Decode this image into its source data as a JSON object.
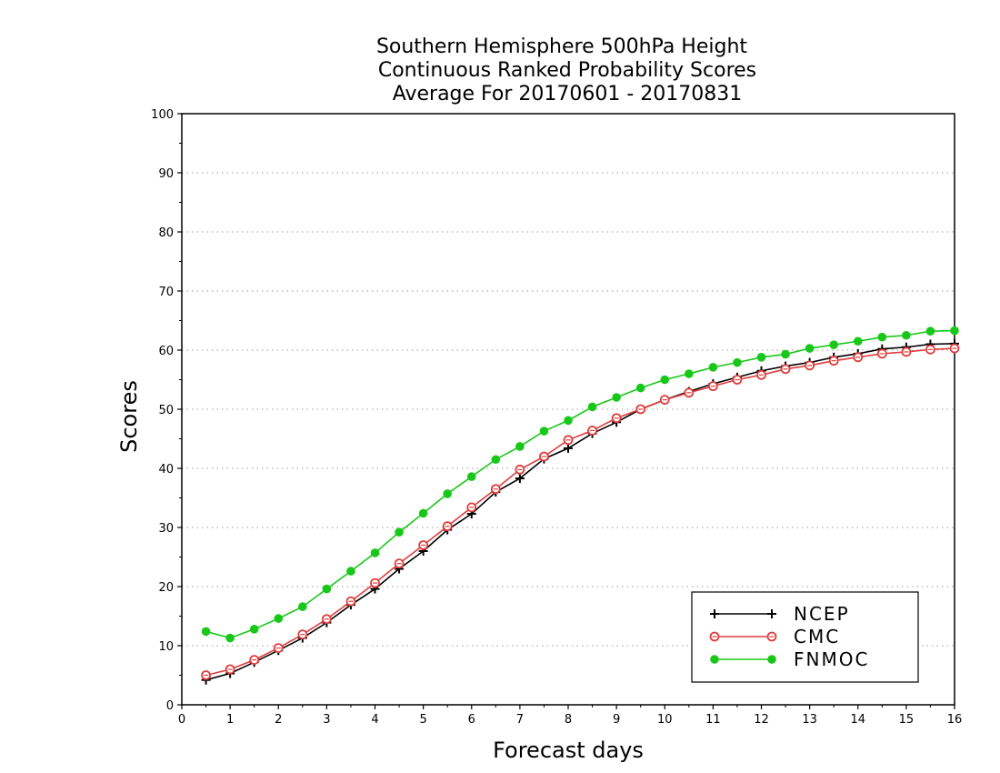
{
  "chart_data": {
    "type": "line",
    "title": [
      "Southern Hemisphere 500hPa Height",
      "Continuous Ranked Probability Scores",
      "Average For 20170601 - 20170831"
    ],
    "xlabel": "Forecast days",
    "ylabel": "Scores",
    "xlim": [
      0,
      16
    ],
    "ylim": [
      0,
      100
    ],
    "xticks": [
      0,
      1,
      2,
      3,
      4,
      5,
      6,
      7,
      8,
      9,
      10,
      11,
      12,
      13,
      14,
      15,
      16
    ],
    "yticks": [
      0,
      10,
      20,
      30,
      40,
      50,
      60,
      70,
      80,
      90,
      100
    ],
    "grid": "dotted horizontal",
    "legend_position": "bottom-right",
    "x": [
      0.5,
      1.0,
      1.5,
      2.0,
      2.5,
      3.0,
      3.5,
      4.0,
      4.5,
      5.0,
      5.5,
      6.0,
      6.5,
      7.0,
      7.5,
      8.0,
      8.5,
      9.0,
      9.5,
      10.0,
      10.5,
      11.0,
      11.5,
      12.0,
      12.5,
      13.0,
      13.5,
      14.0,
      14.5,
      15.0,
      15.5,
      16.0
    ],
    "series": [
      {
        "name": "NCEP",
        "color": "#000000",
        "marker": "plus",
        "values": [
          4.2,
          5.3,
          7.2,
          9.2,
          11.3,
          13.9,
          16.9,
          19.6,
          23.0,
          26.0,
          29.6,
          32.3,
          36.0,
          38.3,
          41.6,
          43.4,
          45.9,
          47.8,
          50.0,
          51.6,
          53.0,
          54.3,
          55.4,
          56.5,
          57.3,
          57.9,
          58.8,
          59.4,
          60.2,
          60.5,
          61.0,
          61.1
        ]
      },
      {
        "name": "CMC",
        "color": "#e03c3c",
        "marker": "open-circle",
        "values": [
          5.0,
          6.0,
          7.6,
          9.6,
          11.9,
          14.5,
          17.5,
          20.6,
          23.9,
          27.0,
          30.2,
          33.4,
          36.5,
          39.8,
          42.0,
          44.8,
          46.4,
          48.5,
          50.0,
          51.6,
          52.8,
          53.9,
          55.0,
          55.8,
          56.8,
          57.4,
          58.2,
          58.8,
          59.4,
          59.7,
          60.1,
          60.3
        ]
      },
      {
        "name": "FNMOC",
        "color": "#18c818",
        "marker": "filled-circle",
        "values": [
          12.4,
          11.3,
          12.8,
          14.6,
          16.6,
          19.6,
          22.6,
          25.7,
          29.2,
          32.4,
          35.7,
          38.6,
          41.5,
          43.7,
          46.3,
          48.1,
          50.4,
          52.0,
          53.6,
          55.0,
          56.0,
          57.1,
          57.9,
          58.8,
          59.3,
          60.3,
          60.9,
          61.5,
          62.2,
          62.5,
          63.2,
          63.3
        ]
      }
    ]
  }
}
